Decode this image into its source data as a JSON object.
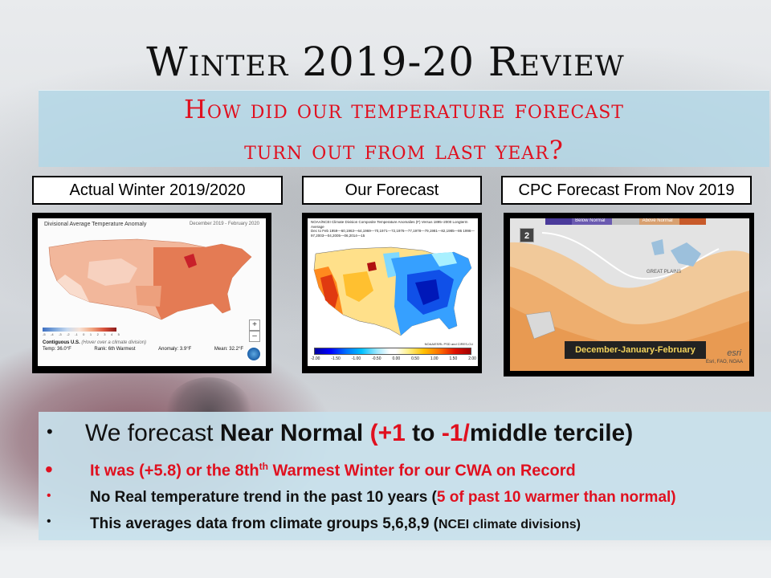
{
  "slide": {
    "title": "Winter 2019-20 Review",
    "subtitle_line1": "How did our temperature forecast",
    "subtitle_line2": "turn out from last year?"
  },
  "panels": [
    {
      "label": "Actual Winter 2019/2020",
      "map_title": "Divisional Average Temperature Anomaly",
      "map_date": "December 2019 - February 2020",
      "footer_region": "Contiguous U.S.",
      "footer_hint": "(Hover over a climate division)",
      "footer_temp": "Temp: 36.0°F",
      "footer_rank": "Rank: 6th Warmest",
      "footer_anomaly": "Anomaly: 3.9°F",
      "footer_mean": "Mean: 32.2°F",
      "zoom_in": "+",
      "zoom_out": "–",
      "scale_labels": [
        "-5",
        "-4",
        "-3",
        "-2",
        "-1",
        "0",
        "1",
        "2",
        "3",
        "4",
        "5"
      ]
    },
    {
      "label": "Our Forecast",
      "map_header": "NOAA/NCEI Climate Division Composite Temperature Anomalies (F) Versus 1895–2000 Longterm Average",
      "map_header2": "Dec to Feb 1959—60,1963—64,1969—70,1971—72,1976—77,1978—79,1981—82,1985—86 1996—97,2003—04,2005—06,2014—15",
      "credit": "NOAA/ESRL PSD and CIRES-CU",
      "scale_labels": [
        "-2.00",
        "-1.50",
        "-1.00",
        "-0.50",
        "0.00",
        "0.50",
        "1.00",
        "1.50",
        "2.00"
      ]
    },
    {
      "label": "CPC Forecast From Nov 2019",
      "legend_below": "Below Normal",
      "legend_above": "Above Normal",
      "badge": "2",
      "season_label": "December-January-February",
      "region_label": "GREAT PLAINS",
      "esri": "esri",
      "credit": "Esri, FAO, NOAA"
    }
  ],
  "bullets": {
    "b1_pre": "We forecast ",
    "b1_bold": "Near Normal ",
    "b1_open": "(",
    "b1_plus1": "+1",
    "b1_to": " to ",
    "b1_minus1": "-1/",
    "b1_rest": "middle tercile)",
    "b2_pre": "It was (+5.8) or the 8th",
    "b2_sup": "th",
    "b2_post": "  Warmest Winter for our CWA on Record",
    "b3_pre": "No Real temperature trend in the past 10 years (",
    "b3_red": "5 of past 10 warmer than normal)",
    "b4_pre": "This averages data from climate groups 5,6,8,9 (",
    "b4_small": "NCEI climate divisions)"
  },
  "colors": {
    "title": "#111111",
    "accent_red": "#e0101f",
    "band": "#b4d7e6"
  }
}
